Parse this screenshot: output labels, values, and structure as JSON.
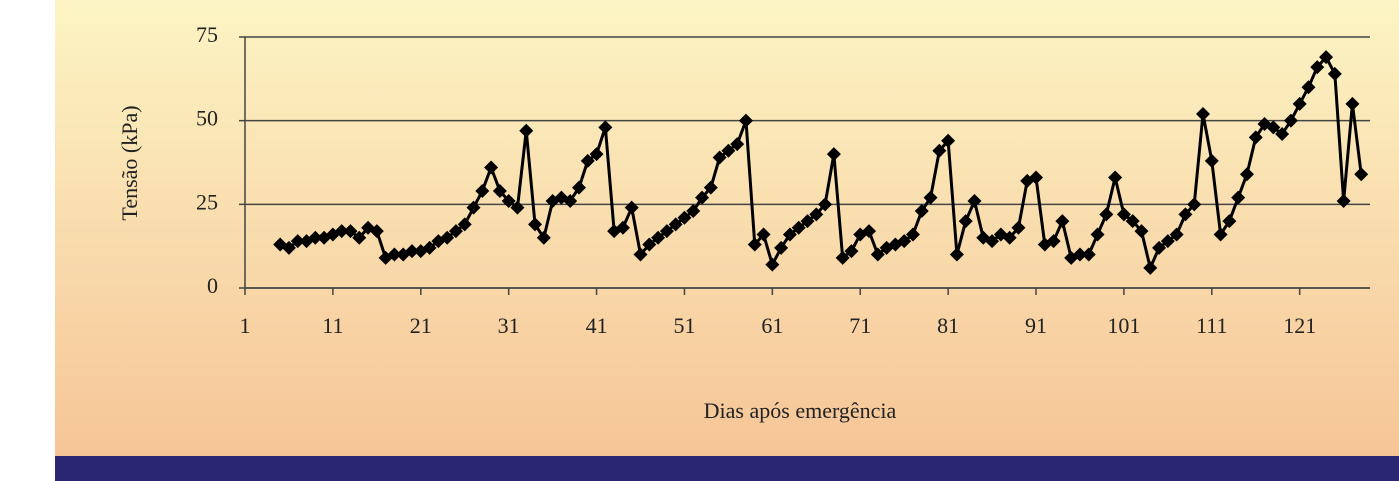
{
  "chart_data": {
    "type": "line",
    "y_label": "Tensão (kPa)",
    "x_label": "Dias após emergência",
    "x": [
      5,
      6,
      7,
      8,
      9,
      10,
      11,
      12,
      13,
      14,
      15,
      16,
      17,
      18,
      19,
      20,
      21,
      22,
      23,
      24,
      25,
      26,
      27,
      28,
      29,
      30,
      31,
      32,
      33,
      34,
      35,
      36,
      37,
      38,
      39,
      40,
      41,
      42,
      43,
      44,
      45,
      46,
      47,
      48,
      49,
      50,
      51,
      52,
      53,
      54,
      55,
      56,
      57,
      58,
      59,
      60,
      61,
      62,
      63,
      64,
      65,
      66,
      67,
      68,
      69,
      70,
      71,
      72,
      73,
      74,
      75,
      76,
      77,
      78,
      79,
      80,
      81,
      82,
      83,
      84,
      85,
      86,
      87,
      88,
      89,
      90,
      91,
      92,
      93,
      94,
      95,
      96,
      97,
      98,
      99,
      100,
      101,
      102,
      103,
      104,
      105,
      106,
      107,
      108,
      109,
      110,
      111,
      112,
      113,
      114,
      115,
      116,
      117,
      118,
      119,
      120,
      121,
      122,
      123,
      124,
      125,
      126,
      127,
      128
    ],
    "values": [
      13,
      12,
      14,
      14,
      15,
      15,
      16,
      17,
      17,
      15,
      18,
      17,
      9,
      10,
      10,
      11,
      11,
      12,
      14,
      15,
      17,
      19,
      24,
      29,
      36,
      29,
      26,
      24,
      47,
      19,
      15,
      26,
      27,
      26,
      30,
      38,
      40,
      48,
      17,
      18,
      24,
      10,
      13,
      15,
      17,
      19,
      21,
      23,
      27,
      30,
      39,
      41,
      43,
      50,
      13,
      16,
      7,
      12,
      16,
      18,
      20,
      22,
      25,
      40,
      9,
      11,
      16,
      17,
      10,
      12,
      13,
      14,
      16,
      23,
      27,
      41,
      44,
      10,
      20,
      26,
      15,
      14,
      16,
      15,
      18,
      32,
      33,
      13,
      14,
      20,
      9,
      10,
      10,
      16,
      22,
      33,
      22,
      20,
      17,
      6,
      12,
      14,
      16,
      22,
      25,
      52,
      38,
      16,
      20,
      27,
      34,
      45,
      49,
      48,
      46,
      50,
      55,
      60,
      66,
      69,
      64,
      26,
      55,
      34
    ],
    "color": "#000000",
    "xlim": [
      1,
      129
    ],
    "xticks": [
      1,
      11,
      21,
      31,
      41,
      51,
      61,
      71,
      81,
      91,
      101,
      111,
      121
    ],
    "ylim": [
      0,
      75
    ],
    "yticks": [
      0,
      25,
      50,
      75
    ],
    "grid": true
  }
}
